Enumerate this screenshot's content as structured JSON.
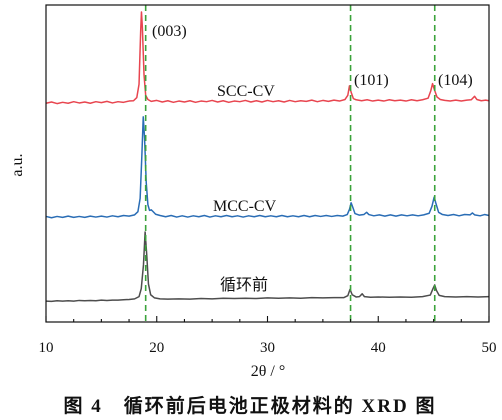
{
  "chart_data": {
    "type": "line",
    "xlabel": "2θ / °",
    "ylabel": "a.u.",
    "xlim": [
      10,
      50
    ],
    "ylim": [
      0,
      100
    ],
    "x_ticks": [
      10,
      20,
      30,
      40,
      50
    ],
    "grid": false,
    "caption": "图 4　循环前后电池正极材料的 XRD 图",
    "reference_lines": [
      {
        "x": 19.0,
        "label": "(003)",
        "color": "#3ba33b"
      },
      {
        "x": 37.5,
        "label": "(101)",
        "color": "#3ba33b"
      },
      {
        "x": 45.1,
        "label": "(104)",
        "color": "#3ba33b"
      }
    ],
    "series": [
      {
        "name": "SCC-CV",
        "color": "#e8454f",
        "points": [
          [
            10,
            69.0
          ],
          [
            10.5,
            69.4
          ],
          [
            11,
            68.9
          ],
          [
            11.5,
            69.3
          ],
          [
            12,
            69.0
          ],
          [
            12.5,
            69.5
          ],
          [
            13,
            69.1
          ],
          [
            13.5,
            69.4
          ],
          [
            14,
            69.0
          ],
          [
            14.5,
            69.5
          ],
          [
            15,
            69.2
          ],
          [
            15.5,
            69.6
          ],
          [
            16,
            69.1
          ],
          [
            16.5,
            69.5
          ],
          [
            17,
            69.3
          ],
          [
            17.5,
            69.7
          ],
          [
            17.9,
            69.8
          ],
          [
            18.2,
            70.8
          ],
          [
            18.4,
            75
          ],
          [
            18.55,
            92
          ],
          [
            18.62,
            97.8
          ],
          [
            18.7,
            93
          ],
          [
            18.85,
            78
          ],
          [
            19.0,
            71.5
          ],
          [
            19.2,
            70.2
          ],
          [
            19.5,
            69.6
          ],
          [
            20,
            69.9
          ],
          [
            20.5,
            69.4
          ],
          [
            21,
            69.8
          ],
          [
            21.5,
            69.3
          ],
          [
            22,
            69.7
          ],
          [
            22.5,
            69.4
          ],
          [
            23,
            69.8
          ],
          [
            23.5,
            69.3
          ],
          [
            24,
            69.7
          ],
          [
            24.5,
            69.5
          ],
          [
            25,
            69.9
          ],
          [
            25.5,
            69.4
          ],
          [
            26,
            69.8
          ],
          [
            26.5,
            69.3
          ],
          [
            27,
            69.7
          ],
          [
            27.5,
            69.5
          ],
          [
            28,
            69.9
          ],
          [
            28.5,
            69.4
          ],
          [
            29,
            69.8
          ],
          [
            29.5,
            69.4
          ],
          [
            30,
            69.9
          ],
          [
            30.5,
            69.5
          ],
          [
            31,
            69.8
          ],
          [
            31.5,
            69.4
          ],
          [
            32,
            69.9
          ],
          [
            32.5,
            69.5
          ],
          [
            33,
            69.8
          ],
          [
            33.5,
            69.6
          ],
          [
            34,
            70.0
          ],
          [
            34.5,
            69.5
          ],
          [
            35,
            69.9
          ],
          [
            35.5,
            69.6
          ],
          [
            36,
            70.0
          ],
          [
            36.5,
            69.7
          ],
          [
            37.0,
            70.2
          ],
          [
            37.25,
            71.5
          ],
          [
            37.4,
            74.5
          ],
          [
            37.55,
            72.5
          ],
          [
            37.75,
            70.5
          ],
          [
            38,
            70.1
          ],
          [
            38.5,
            69.8
          ],
          [
            39,
            70.1
          ],
          [
            39.5,
            69.7
          ],
          [
            40,
            70.0
          ],
          [
            40.5,
            69.7
          ],
          [
            41,
            70.1
          ],
          [
            41.5,
            69.8
          ],
          [
            42,
            70.0
          ],
          [
            42.5,
            69.7
          ],
          [
            43,
            70.1
          ],
          [
            43.5,
            69.8
          ],
          [
            44,
            70.1
          ],
          [
            44.5,
            70.6
          ],
          [
            44.75,
            73.0
          ],
          [
            44.9,
            75.2
          ],
          [
            45.05,
            73.5
          ],
          [
            45.3,
            71.0
          ],
          [
            45.6,
            70.2
          ],
          [
            46,
            69.9
          ],
          [
            46.5,
            69.7
          ],
          [
            47,
            70.0
          ],
          [
            47.5,
            69.7
          ],
          [
            48,
            70.0
          ],
          [
            48.4,
            70.1
          ],
          [
            48.7,
            71.2
          ],
          [
            48.9,
            70.2
          ],
          [
            49.3,
            69.8
          ],
          [
            49.7,
            70.0
          ],
          [
            50,
            69.8
          ]
        ]
      },
      {
        "name": "MCC-CV",
        "color": "#2a6db5",
        "points": [
          [
            10,
            33.3
          ],
          [
            10.5,
            32.9
          ],
          [
            11,
            33.3
          ],
          [
            11.5,
            33.0
          ],
          [
            12,
            33.4
          ],
          [
            12.5,
            33.0
          ],
          [
            13,
            33.3
          ],
          [
            13.5,
            33.0
          ],
          [
            14,
            33.4
          ],
          [
            14.5,
            33.1
          ],
          [
            15,
            33.4
          ],
          [
            15.5,
            33.1
          ],
          [
            16,
            33.5
          ],
          [
            16.5,
            33.2
          ],
          [
            17,
            33.6
          ],
          [
            17.5,
            33.4
          ],
          [
            18,
            33.8
          ],
          [
            18.3,
            34.8
          ],
          [
            18.5,
            39.0
          ],
          [
            18.65,
            52.0
          ],
          [
            18.78,
            64.7
          ],
          [
            18.9,
            58.0
          ],
          [
            19.05,
            44.0
          ],
          [
            19.2,
            37.0
          ],
          [
            19.35,
            35.2
          ],
          [
            19.5,
            35.4
          ],
          [
            19.65,
            34.9
          ],
          [
            19.9,
            34.0
          ],
          [
            20.3,
            33.6
          ],
          [
            20.8,
            33.2
          ],
          [
            21.3,
            33.6
          ],
          [
            21.8,
            33.1
          ],
          [
            22.3,
            33.5
          ],
          [
            22.8,
            33.1
          ],
          [
            23.3,
            33.5
          ],
          [
            23.8,
            33.2
          ],
          [
            24.3,
            33.6
          ],
          [
            24.8,
            33.1
          ],
          [
            25.3,
            33.5
          ],
          [
            25.8,
            33.2
          ],
          [
            26.3,
            33.6
          ],
          [
            26.8,
            33.2
          ],
          [
            27.3,
            33.5
          ],
          [
            27.8,
            33.1
          ],
          [
            28.3,
            33.5
          ],
          [
            28.8,
            33.2
          ],
          [
            29.3,
            33.6
          ],
          [
            29.8,
            33.2
          ],
          [
            30.3,
            33.5
          ],
          [
            30.8,
            33.2
          ],
          [
            31.3,
            33.6
          ],
          [
            31.8,
            33.2
          ],
          [
            32.3,
            33.5
          ],
          [
            32.8,
            33.2
          ],
          [
            33.3,
            33.6
          ],
          [
            33.8,
            33.2
          ],
          [
            34.3,
            33.6
          ],
          [
            34.8,
            33.3
          ],
          [
            35.3,
            33.6
          ],
          [
            35.8,
            33.3
          ],
          [
            36.3,
            33.6
          ],
          [
            36.8,
            33.4
          ],
          [
            37.2,
            33.9
          ],
          [
            37.4,
            35.5
          ],
          [
            37.55,
            37.6
          ],
          [
            37.7,
            36.2
          ],
          [
            37.9,
            34.2
          ],
          [
            38.3,
            33.7
          ],
          [
            38.7,
            33.9
          ],
          [
            38.95,
            34.6
          ],
          [
            39.15,
            33.9
          ],
          [
            39.6,
            33.5
          ],
          [
            40.1,
            33.8
          ],
          [
            40.6,
            33.4
          ],
          [
            41.1,
            33.8
          ],
          [
            41.6,
            33.4
          ],
          [
            42.1,
            33.8
          ],
          [
            42.6,
            33.5
          ],
          [
            43.1,
            33.8
          ],
          [
            43.6,
            33.5
          ],
          [
            44.1,
            33.8
          ],
          [
            44.6,
            34.3
          ],
          [
            44.85,
            36.5
          ],
          [
            45.05,
            39.4
          ],
          [
            45.2,
            37.5
          ],
          [
            45.45,
            34.6
          ],
          [
            45.8,
            33.9
          ],
          [
            46.3,
            33.6
          ],
          [
            46.8,
            33.9
          ],
          [
            47.3,
            33.5
          ],
          [
            47.8,
            33.9
          ],
          [
            48.3,
            33.8
          ],
          [
            48.5,
            34.4
          ],
          [
            48.7,
            33.8
          ],
          [
            49.2,
            33.5
          ],
          [
            49.6,
            33.9
          ],
          [
            50,
            33.6
          ]
        ]
      },
      {
        "name": "循环前",
        "color": "#4d4d4d",
        "points": [
          [
            10,
            6.6
          ],
          [
            10.5,
            6.5
          ],
          [
            11,
            6.7
          ],
          [
            11.5,
            6.6
          ],
          [
            12,
            6.7
          ],
          [
            12.5,
            6.6
          ],
          [
            13,
            6.8
          ],
          [
            13.5,
            6.7
          ],
          [
            14,
            6.8
          ],
          [
            14.5,
            6.7
          ],
          [
            15,
            6.9
          ],
          [
            15.5,
            6.8
          ],
          [
            16,
            6.9
          ],
          [
            16.5,
            6.9
          ],
          [
            17,
            7.0
          ],
          [
            17.5,
            7.1
          ],
          [
            18,
            7.3
          ],
          [
            18.4,
            8.0
          ],
          [
            18.6,
            10.5
          ],
          [
            18.8,
            18.0
          ],
          [
            18.95,
            28.4
          ],
          [
            19.1,
            21.0
          ],
          [
            19.25,
            12.0
          ],
          [
            19.45,
            8.6
          ],
          [
            19.8,
            7.6
          ],
          [
            20.3,
            7.3
          ],
          [
            21,
            7.2
          ],
          [
            22,
            7.3
          ],
          [
            23,
            7.2
          ],
          [
            24,
            7.4
          ],
          [
            25,
            7.3
          ],
          [
            26,
            7.5
          ],
          [
            27,
            7.4
          ],
          [
            28,
            7.5
          ],
          [
            29,
            7.4
          ],
          [
            30,
            7.6
          ],
          [
            31,
            7.5
          ],
          [
            32,
            7.6
          ],
          [
            33,
            7.5
          ],
          [
            34,
            7.7
          ],
          [
            35,
            7.6
          ],
          [
            36,
            7.7
          ],
          [
            36.9,
            7.7
          ],
          [
            37.25,
            8.3
          ],
          [
            37.45,
            10.3
          ],
          [
            37.65,
            8.6
          ],
          [
            38,
            7.9
          ],
          [
            38.3,
            8.0
          ],
          [
            38.55,
            8.9
          ],
          [
            38.75,
            8.0
          ],
          [
            39.3,
            7.8
          ],
          [
            40,
            7.9
          ],
          [
            41,
            7.8
          ],
          [
            42,
            7.9
          ],
          [
            43,
            7.8
          ],
          [
            44,
            8.0
          ],
          [
            44.7,
            8.5
          ],
          [
            44.95,
            10.6
          ],
          [
            45.1,
            11.7
          ],
          [
            45.25,
            10.0
          ],
          [
            45.5,
            8.4
          ],
          [
            46,
            8.0
          ],
          [
            47,
            7.9
          ],
          [
            48,
            8.0
          ],
          [
            49,
            7.9
          ],
          [
            50,
            8.0
          ]
        ]
      }
    ]
  }
}
